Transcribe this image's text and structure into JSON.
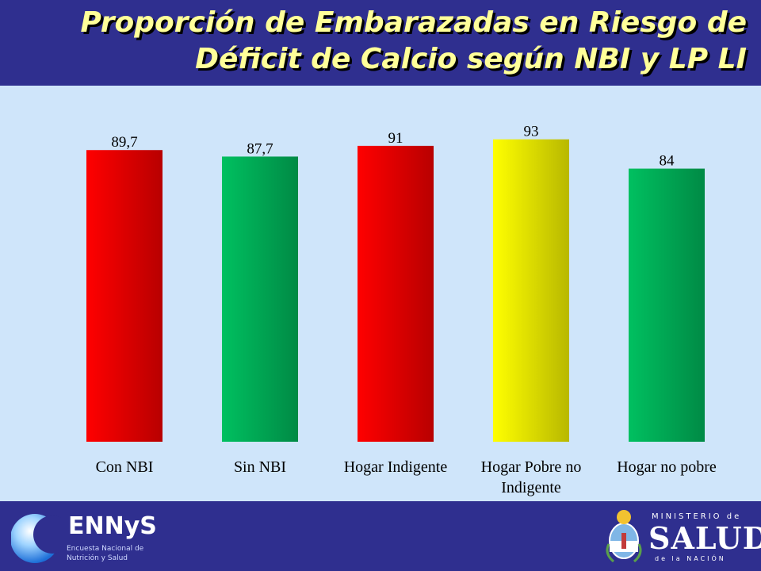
{
  "title": "Proporción de Embarazadas en Riesgo de Déficit de Calcio según NBI y LP LI",
  "chart_data": {
    "type": "bar",
    "categories": [
      "Con NBI",
      "Sin NBI",
      "Hogar Indigente",
      "Hogar Pobre no Indigente",
      "Hogar no pobre"
    ],
    "values": [
      89.7,
      87.7,
      91,
      93,
      84
    ],
    "value_labels": [
      "89,7",
      "87,7",
      "91",
      "93",
      "84"
    ],
    "bar_colors": [
      "#ff0000",
      "#00c060",
      "#ff0000",
      "#ffff00",
      "#00c060"
    ],
    "ylim": [
      0,
      100
    ],
    "grid": false,
    "legend": "none"
  },
  "footer": {
    "left_logo": {
      "name": "ENNyS",
      "subtitle": "Encuesta Nacional de Nutrición y Salud"
    },
    "right_logo": {
      "line1": "MINISTERIO de",
      "line2": "SALUD",
      "line3": "de la NACIÓN"
    }
  },
  "colors": {
    "header_bg": "#2f2f8f",
    "title_text": "#ffff99",
    "plot_bg": "#cfe5fa"
  }
}
